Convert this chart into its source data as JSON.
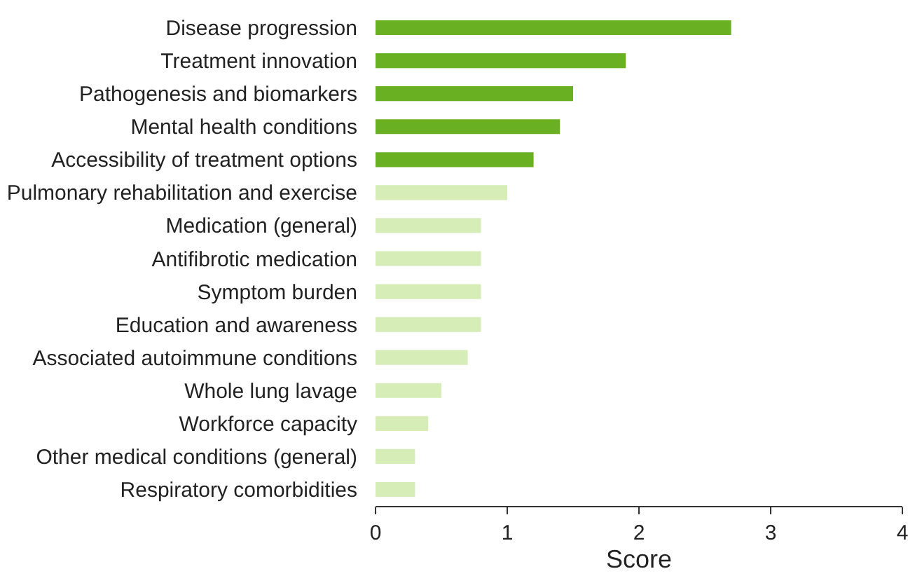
{
  "chart_data": {
    "type": "bar",
    "orientation": "horizontal",
    "xlabel": "Score",
    "categories": [
      "Disease progression",
      "Treatment innovation",
      "Pathogenesis and biomarkers",
      "Mental health conditions",
      "Accessibility of treatment options",
      "Pulmonary rehabilitation and exercise",
      "Medication (general)",
      "Antifibrotic medication",
      "Symptom burden",
      "Education and awareness",
      "Associated autoimmune conditions",
      "Whole lung lavage",
      "Workforce capacity",
      "Other medical conditions (general)",
      "Respiratory comorbidities"
    ],
    "values": [
      2.7,
      1.9,
      1.5,
      1.4,
      1.2,
      1.0,
      0.8,
      0.8,
      0.8,
      0.8,
      0.7,
      0.5,
      0.4,
      0.3,
      0.3
    ],
    "colors": [
      "#6ab023",
      "#6ab023",
      "#6ab023",
      "#6ab023",
      "#6ab023",
      "#d6edb8",
      "#d6edb8",
      "#d6edb8",
      "#d6edb8",
      "#d6edb8",
      "#d6edb8",
      "#d6edb8",
      "#d6edb8",
      "#d6edb8",
      "#d6edb8"
    ],
    "xlim": [
      0,
      4
    ],
    "xticks": [
      0,
      1,
      2,
      3,
      4
    ]
  }
}
